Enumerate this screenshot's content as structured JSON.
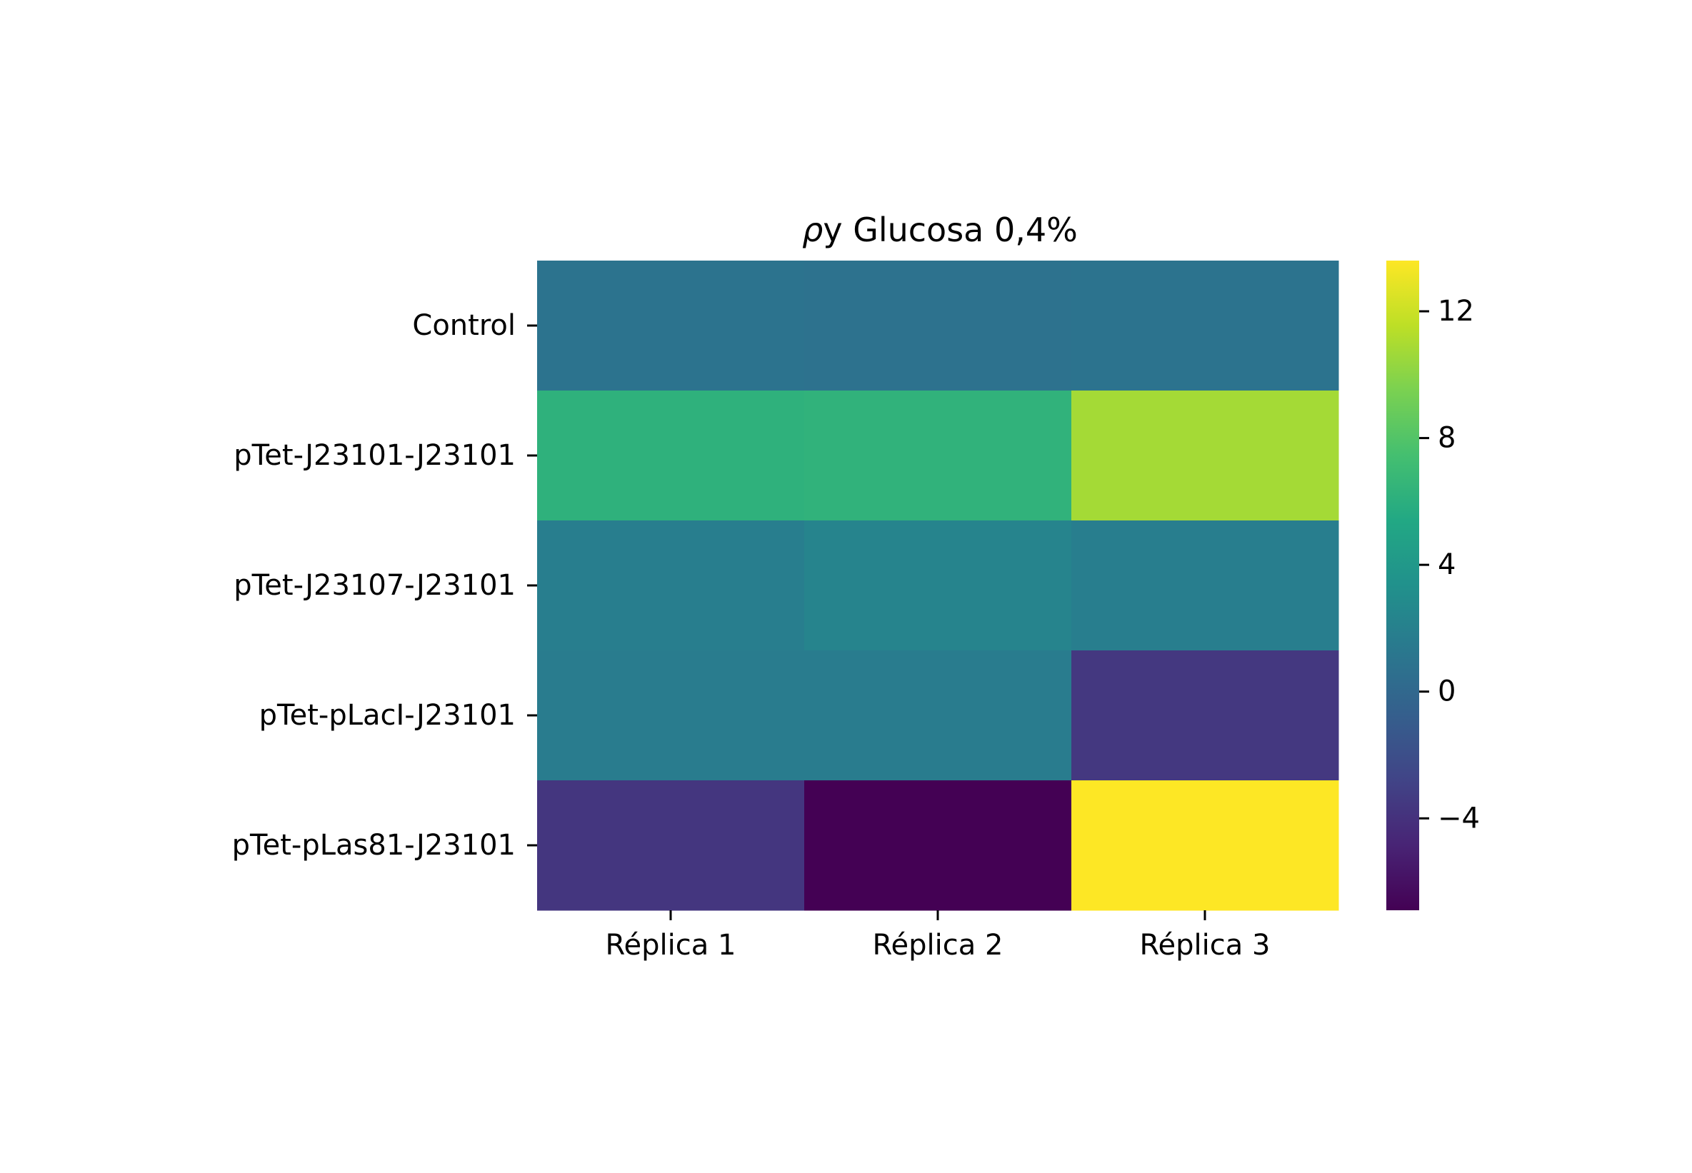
{
  "chart_data": {
    "type": "heatmap",
    "title": "ρy Glucosa 0,4%",
    "title_symbol": "ρ",
    "title_text": "y Glucosa 0,4%",
    "xlabel": "",
    "ylabel": "",
    "colormap": "viridis",
    "x": [
      "Réplica 1",
      "Réplica 2",
      "Réplica 3"
    ],
    "y": [
      "Control",
      "pTet-J23101-J23101",
      "pTet-J23107-J23101",
      "pTet-pLacI-J23101",
      "pTet-pLas81-J23101"
    ],
    "values": [
      [
        0.9,
        0.8,
        0.9
      ],
      [
        6.2,
        6.3,
        10.8
      ],
      [
        1.8,
        2.3,
        1.8
      ],
      [
        1.6,
        1.6,
        -3.6
      ],
      [
        -3.7,
        -6.9,
        13.6
      ]
    ],
    "colorbar": {
      "range": [
        -6.9,
        13.6
      ],
      "ticks": [
        -4,
        0,
        4,
        8,
        12
      ],
      "tick_labels": [
        "−4",
        "0",
        "4",
        "8",
        "12"
      ]
    }
  }
}
